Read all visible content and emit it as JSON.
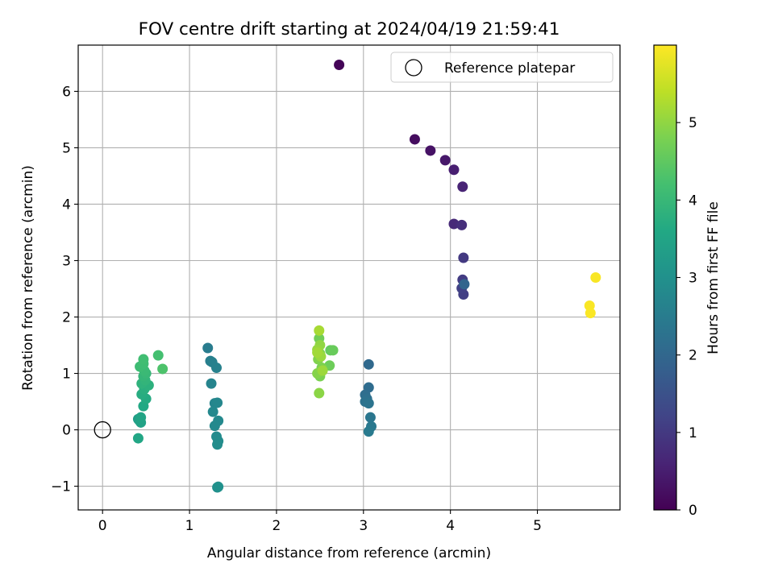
{
  "chart_data": {
    "type": "scatter",
    "title": "FOV centre drift starting at 2024/04/19 21:59:41",
    "xlabel": "Angular distance from reference (arcmin)",
    "ylabel": "Rotation from reference (arcmin)",
    "xlim": [
      -0.28,
      5.95
    ],
    "ylim": [
      -1.42,
      6.82
    ],
    "xticks": [
      0,
      1,
      2,
      3,
      4,
      5
    ],
    "yticks": [
      -1,
      0,
      1,
      2,
      3,
      4,
      5,
      6
    ],
    "xtick_labels": [
      "0",
      "1",
      "2",
      "3",
      "4",
      "5"
    ],
    "ytick_labels": [
      "−1",
      "0",
      "1",
      "2",
      "3",
      "4",
      "5",
      "6"
    ],
    "grid": true,
    "legend": {
      "placement": "top-right",
      "entries": [
        "Reference platepar"
      ]
    },
    "reference_point": {
      "x": 0,
      "y": 0
    },
    "colorbar": {
      "label": "Hours from first FF file",
      "range": [
        0,
        6
      ],
      "ticks": [
        0,
        1,
        2,
        3,
        4,
        5
      ],
      "tick_labels": [
        "0",
        "1",
        "2",
        "3",
        "4",
        "5"
      ],
      "colormap": "viridis"
    },
    "points": [
      {
        "x": 2.72,
        "y": 6.47,
        "c": 0.05
      },
      {
        "x": 3.59,
        "y": 5.15,
        "c": 0.2
      },
      {
        "x": 3.77,
        "y": 4.95,
        "c": 0.3
      },
      {
        "x": 3.94,
        "y": 4.78,
        "c": 0.4
      },
      {
        "x": 4.04,
        "y": 4.61,
        "c": 0.5
      },
      {
        "x": 4.14,
        "y": 4.31,
        "c": 0.6
      },
      {
        "x": 4.04,
        "y": 3.65,
        "c": 0.7
      },
      {
        "x": 4.13,
        "y": 3.63,
        "c": 0.8
      },
      {
        "x": 4.15,
        "y": 3.05,
        "c": 1.0
      },
      {
        "x": 4.14,
        "y": 2.66,
        "c": 1.05
      },
      {
        "x": 4.15,
        "y": 2.4,
        "c": 1.1
      },
      {
        "x": 4.13,
        "y": 2.51,
        "c": 1.15
      },
      {
        "x": 4.16,
        "y": 2.58,
        "c": 1.95
      },
      {
        "x": 3.06,
        "y": 1.16,
        "c": 2.05
      },
      {
        "x": 3.06,
        "y": 0.75,
        "c": 2.1
      },
      {
        "x": 3.02,
        "y": 0.62,
        "c": 2.15
      },
      {
        "x": 3.04,
        "y": 0.55,
        "c": 2.2
      },
      {
        "x": 3.02,
        "y": 0.5,
        "c": 2.25
      },
      {
        "x": 3.06,
        "y": 0.47,
        "c": 2.3
      },
      {
        "x": 3.08,
        "y": 0.22,
        "c": 2.35
      },
      {
        "x": 3.09,
        "y": 0.06,
        "c": 2.4
      },
      {
        "x": 3.06,
        "y": -0.03,
        "c": 2.45
      },
      {
        "x": 1.21,
        "y": 1.45,
        "c": 2.5
      },
      {
        "x": 1.24,
        "y": 1.22,
        "c": 2.55
      },
      {
        "x": 1.26,
        "y": 1.2,
        "c": 2.6
      },
      {
        "x": 1.31,
        "y": 1.1,
        "c": 2.62
      },
      {
        "x": 1.25,
        "y": 0.82,
        "c": 2.68
      },
      {
        "x": 1.29,
        "y": 0.47,
        "c": 2.72
      },
      {
        "x": 1.32,
        "y": 0.48,
        "c": 2.75
      },
      {
        "x": 1.27,
        "y": 0.32,
        "c": 2.78
      },
      {
        "x": 1.33,
        "y": 0.16,
        "c": 2.8
      },
      {
        "x": 1.29,
        "y": 0.07,
        "c": 2.82
      },
      {
        "x": 1.31,
        "y": -0.12,
        "c": 2.85
      },
      {
        "x": 1.33,
        "y": -0.2,
        "c": 2.88
      },
      {
        "x": 1.32,
        "y": -0.26,
        "c": 2.9
      },
      {
        "x": 1.32,
        "y": -1.02,
        "c": 2.95
      },
      {
        "x": 1.33,
        "y": -1.01,
        "c": 3.0
      },
      {
        "x": 0.41,
        "y": 0.19,
        "c": 3.3
      },
      {
        "x": 0.42,
        "y": 0.17,
        "c": 3.4
      },
      {
        "x": 0.44,
        "y": 0.13,
        "c": 3.45
      },
      {
        "x": 0.44,
        "y": 0.22,
        "c": 3.5
      },
      {
        "x": 0.41,
        "y": -0.15,
        "c": 3.55
      },
      {
        "x": 0.47,
        "y": 0.42,
        "c": 3.6
      },
      {
        "x": 0.5,
        "y": 0.55,
        "c": 3.65
      },
      {
        "x": 0.45,
        "y": 0.63,
        "c": 3.7
      },
      {
        "x": 0.48,
        "y": 0.72,
        "c": 3.75
      },
      {
        "x": 0.53,
        "y": 0.79,
        "c": 3.8
      },
      {
        "x": 0.45,
        "y": 0.82,
        "c": 3.85
      },
      {
        "x": 0.49,
        "y": 0.88,
        "c": 3.9
      },
      {
        "x": 0.47,
        "y": 0.95,
        "c": 3.95
      },
      {
        "x": 0.5,
        "y": 1.0,
        "c": 4.0
      },
      {
        "x": 0.48,
        "y": 1.05,
        "c": 4.05
      },
      {
        "x": 0.43,
        "y": 1.12,
        "c": 4.1
      },
      {
        "x": 0.47,
        "y": 1.17,
        "c": 4.12
      },
      {
        "x": 0.47,
        "y": 1.25,
        "c": 4.15
      },
      {
        "x": 0.64,
        "y": 1.32,
        "c": 4.2
      },
      {
        "x": 0.69,
        "y": 1.08,
        "c": 4.3
      },
      {
        "x": 2.62,
        "y": 1.41,
        "c": 4.55
      },
      {
        "x": 2.65,
        "y": 1.41,
        "c": 4.6
      },
      {
        "x": 2.61,
        "y": 1.14,
        "c": 4.65
      },
      {
        "x": 2.49,
        "y": 1.62,
        "c": 4.7
      },
      {
        "x": 2.5,
        "y": 0.95,
        "c": 4.8
      },
      {
        "x": 2.52,
        "y": 1.1,
        "c": 4.82
      },
      {
        "x": 2.48,
        "y": 1.25,
        "c": 4.85
      },
      {
        "x": 2.5,
        "y": 1.35,
        "c": 4.88
      },
      {
        "x": 2.47,
        "y": 1.0,
        "c": 4.9
      },
      {
        "x": 2.49,
        "y": 0.65,
        "c": 4.95
      },
      {
        "x": 2.5,
        "y": 1.5,
        "c": 5.0
      },
      {
        "x": 2.47,
        "y": 1.42,
        "c": 5.05
      },
      {
        "x": 2.51,
        "y": 1.3,
        "c": 5.08
      },
      {
        "x": 2.53,
        "y": 1.05,
        "c": 5.1
      },
      {
        "x": 2.47,
        "y": 1.37,
        "c": 5.15
      },
      {
        "x": 2.49,
        "y": 1.76,
        "c": 5.2
      },
      {
        "x": 5.67,
        "y": 2.7,
        "c": 5.95
      },
      {
        "x": 5.6,
        "y": 2.2,
        "c": 5.96
      },
      {
        "x": 5.61,
        "y": 2.07,
        "c": 5.97
      }
    ]
  }
}
